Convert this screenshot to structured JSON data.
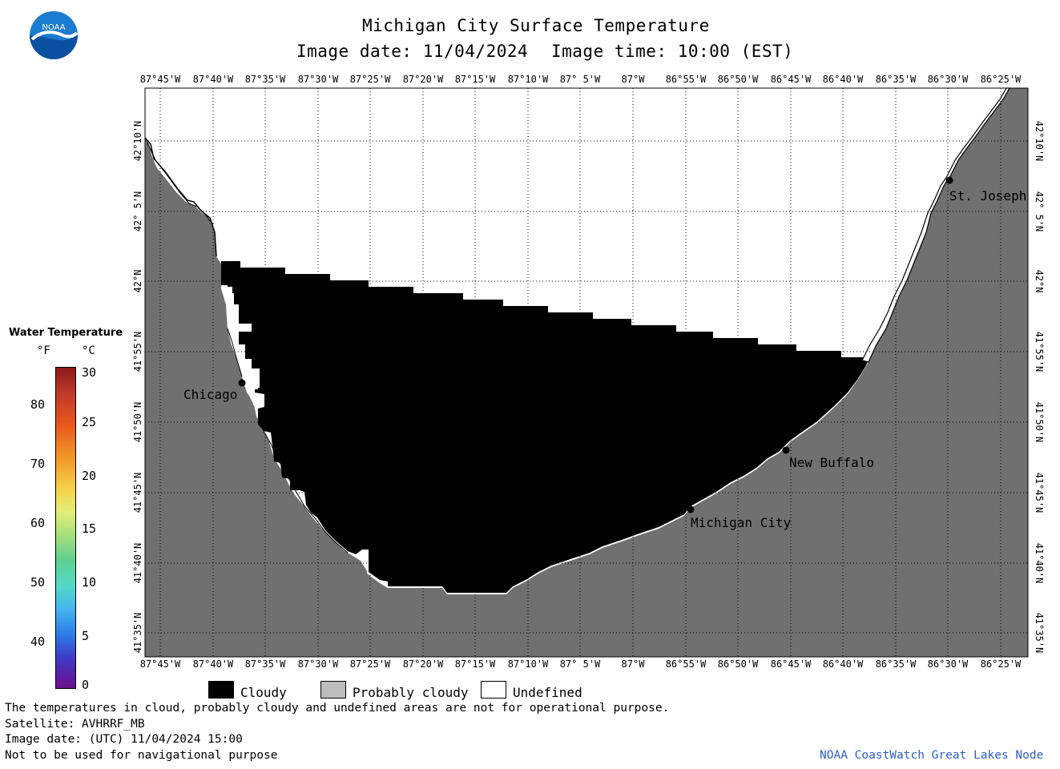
{
  "header": {
    "title": "Michigan City Surface Temperature",
    "image_date": "Image date: 11/04/2024",
    "image_time": "Image time: 10:00 (EST)"
  },
  "logo": {
    "text": "NOAA"
  },
  "map": {
    "lon_labels": [
      "87°45'W",
      "87°40'W",
      "87°35'W",
      "87°30'W",
      "87°25'W",
      "87°20'W",
      "87°15'W",
      "87°10'W",
      "87° 5'W",
      "87°W",
      "86°55'W",
      "86°50'W",
      "86°45'W",
      "86°40'W",
      "86°35'W",
      "86°30'W",
      "86°25'W"
    ],
    "lat_labels": [
      "42°10'N",
      "42° 5'N",
      "42°N",
      "41°55'N",
      "41°50'N",
      "41°45'N",
      "41°40'N",
      "41°35'N"
    ],
    "cities": {
      "st_joseph": "St. Joseph",
      "chicago": "Chicago",
      "new_buffalo": "New Buffalo",
      "michigan_city": "Michigan City"
    },
    "colors": {
      "land": "#707070",
      "cloud": "#000000",
      "undefined": "#ffffff",
      "grid": "#000000"
    }
  },
  "colorbar": {
    "title": "Water Temperature",
    "unit_f": "°F",
    "unit_c": "°C",
    "f_ticks": [
      "80",
      "70",
      "60",
      "50",
      "40"
    ],
    "c_ticks": [
      "30",
      "25",
      "20",
      "15",
      "10",
      "5",
      "0"
    ]
  },
  "legend": {
    "cloudy": "Cloudy",
    "probably_cloudy": "Probably cloudy",
    "undefined": "Undefined"
  },
  "footer": {
    "disclaimer": "The temperatures in cloud, probably cloudy and undefined areas are not for operational purpose.",
    "satellite": "Satellite: AVHRRF_MB",
    "image_date_utc": "Image date: (UTC) 11/04/2024  15:00",
    "nav_warning": "Not to be used for navigational purpose",
    "credit": "NOAA CoastWatch Great Lakes Node"
  }
}
